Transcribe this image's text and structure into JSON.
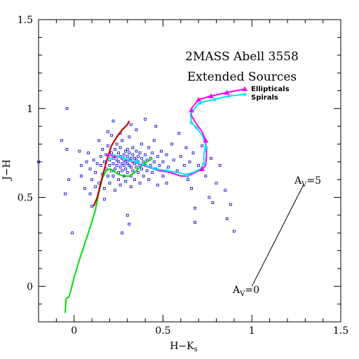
{
  "chart_data": {
    "type": "scatter",
    "title_lines": [
      "2MASS Abell 3558",
      "Extended Sources"
    ],
    "xlabel": "H−K",
    "xlabel_sub": "s",
    "ylabel": "J−H",
    "xlim": [
      -0.2,
      1.5
    ],
    "ylim": [
      -0.2,
      1.5
    ],
    "x_ticks": [
      0,
      0.5,
      1,
      1.5
    ],
    "x_tick_labels": [
      "0",
      "0.5",
      "1",
      "1.5"
    ],
    "y_ticks": [
      0,
      0.5,
      1,
      1.5
    ],
    "y_tick_labels": [
      "0",
      "0.5",
      "1",
      "1.5"
    ],
    "grid": false,
    "colors": {
      "points": "#0000cc",
      "dwarfs": "#00dd00",
      "giants": "#cc0000",
      "ellipticals": "#ff00ff",
      "spirals": "#00e5ee",
      "axes": "#000000"
    },
    "scatter_points": [
      [
        -0.2,
        0.7
      ],
      [
        -0.07,
        0.82
      ],
      [
        -0.04,
        1.0
      ],
      [
        -0.04,
        0.77
      ],
      [
        -0.05,
        0.52
      ],
      [
        -0.03,
        0.6
      ],
      [
        -0.01,
        0.3
      ],
      [
        0.03,
        0.76
      ],
      [
        0.04,
        0.68
      ],
      [
        0.04,
        0.62
      ],
      [
        0.06,
        0.55
      ],
      [
        0.07,
        0.7
      ],
      [
        0.08,
        0.75
      ],
      [
        0.09,
        0.66
      ],
      [
        0.1,
        0.6
      ],
      [
        0.11,
        0.71
      ],
      [
        0.1,
        0.45
      ],
      [
        0.12,
        0.64
      ],
      [
        0.13,
        0.69
      ],
      [
        0.14,
        0.58
      ],
      [
        0.15,
        0.73
      ],
      [
        0.15,
        0.68
      ],
      [
        0.16,
        0.77
      ],
      [
        0.16,
        0.63
      ],
      [
        0.17,
        0.7
      ],
      [
        0.17,
        0.55
      ],
      [
        0.18,
        0.74
      ],
      [
        0.18,
        0.66
      ],
      [
        0.19,
        0.79
      ],
      [
        0.19,
        0.62
      ],
      [
        0.2,
        0.71
      ],
      [
        0.2,
        0.68
      ],
      [
        0.2,
        0.58
      ],
      [
        0.21,
        0.75
      ],
      [
        0.21,
        0.65
      ],
      [
        0.21,
        0.85
      ],
      [
        0.22,
        0.72
      ],
      [
        0.22,
        0.69
      ],
      [
        0.22,
        0.62
      ],
      [
        0.23,
        0.77
      ],
      [
        0.23,
        0.73
      ],
      [
        0.23,
        0.66
      ],
      [
        0.23,
        0.54
      ],
      [
        0.24,
        0.71
      ],
      [
        0.24,
        0.68
      ],
      [
        0.24,
        0.8
      ],
      [
        0.25,
        0.75
      ],
      [
        0.25,
        0.7
      ],
      [
        0.25,
        0.64
      ],
      [
        0.25,
        0.6
      ],
      [
        0.26,
        0.73
      ],
      [
        0.26,
        0.67
      ],
      [
        0.26,
        0.78
      ],
      [
        0.26,
        0.57
      ],
      [
        0.27,
        0.72
      ],
      [
        0.27,
        0.69
      ],
      [
        0.27,
        0.65
      ],
      [
        0.27,
        0.82
      ],
      [
        0.28,
        0.74
      ],
      [
        0.28,
        0.71
      ],
      [
        0.28,
        0.68
      ],
      [
        0.28,
        0.62
      ],
      [
        0.29,
        0.76
      ],
      [
        0.29,
        0.7
      ],
      [
        0.29,
        0.66
      ],
      [
        0.29,
        0.59
      ],
      [
        0.3,
        0.73
      ],
      [
        0.3,
        0.69
      ],
      [
        0.3,
        0.77
      ],
      [
        0.3,
        0.64
      ],
      [
        0.31,
        0.71
      ],
      [
        0.31,
        0.68
      ],
      [
        0.31,
        0.75
      ],
      [
        0.31,
        0.84
      ],
      [
        0.32,
        0.72
      ],
      [
        0.32,
        0.67
      ],
      [
        0.32,
        0.62
      ],
      [
        0.32,
        0.56
      ],
      [
        0.33,
        0.74
      ],
      [
        0.33,
        0.7
      ],
      [
        0.33,
        0.78
      ],
      [
        0.33,
        0.65
      ],
      [
        0.34,
        0.72
      ],
      [
        0.34,
        0.69
      ],
      [
        0.34,
        0.6
      ],
      [
        0.35,
        0.76
      ],
      [
        0.35,
        0.71
      ],
      [
        0.35,
        0.67
      ],
      [
        0.35,
        0.88
      ],
      [
        0.36,
        0.73
      ],
      [
        0.36,
        0.7
      ],
      [
        0.36,
        0.64
      ],
      [
        0.37,
        0.75
      ],
      [
        0.37,
        0.68
      ],
      [
        0.37,
        0.58
      ],
      [
        0.38,
        0.72
      ],
      [
        0.38,
        0.66
      ],
      [
        0.38,
        0.8
      ],
      [
        0.39,
        0.7
      ],
      [
        0.39,
        0.62
      ],
      [
        0.4,
        0.74
      ],
      [
        0.4,
        0.68
      ],
      [
        0.4,
        0.94
      ],
      [
        0.41,
        0.71
      ],
      [
        0.41,
        0.65
      ],
      [
        0.42,
        0.78
      ],
      [
        0.42,
        0.6
      ],
      [
        0.43,
        0.72
      ],
      [
        0.43,
        0.68
      ],
      [
        0.44,
        0.75
      ],
      [
        0.44,
        0.64
      ],
      [
        0.45,
        0.7
      ],
      [
        0.45,
        0.82
      ],
      [
        0.46,
        0.66
      ],
      [
        0.47,
        0.73
      ],
      [
        0.47,
        0.57
      ],
      [
        0.48,
        0.68
      ],
      [
        0.49,
        0.76
      ],
      [
        0.5,
        0.7
      ],
      [
        0.5,
        0.62
      ],
      [
        0.52,
        0.74
      ],
      [
        0.53,
        0.67
      ],
      [
        0.55,
        0.8
      ],
      [
        0.56,
        0.71
      ],
      [
        0.58,
        0.65
      ],
      [
        0.59,
        0.86
      ],
      [
        0.6,
        0.73
      ],
      [
        0.62,
        0.68
      ],
      [
        0.63,
        0.78
      ],
      [
        0.64,
        0.6
      ],
      [
        0.65,
        0.7
      ],
      [
        0.66,
        0.55
      ],
      [
        0.67,
        0.75
      ],
      [
        0.68,
        0.36
      ],
      [
        0.68,
        0.44
      ],
      [
        0.7,
        0.68
      ],
      [
        0.72,
        0.79
      ],
      [
        0.74,
        0.62
      ],
      [
        0.76,
        0.5
      ],
      [
        0.77,
        0.72
      ],
      [
        0.78,
        0.47
      ],
      [
        0.8,
        0.58
      ],
      [
        0.82,
        0.68
      ],
      [
        0.85,
        0.54
      ],
      [
        0.86,
        0.38
      ],
      [
        0.88,
        0.46
      ],
      [
        0.9,
        0.31
      ],
      [
        0.3,
        0.4
      ],
      [
        0.31,
        0.35
      ],
      [
        0.27,
        0.3
      ],
      [
        0.19,
        0.87
      ],
      [
        0.22,
        0.93
      ],
      [
        0.26,
        0.86
      ],
      [
        0.32,
        0.91
      ],
      [
        0.14,
        0.82
      ],
      [
        0.12,
        0.56
      ],
      [
        0.09,
        0.52
      ],
      [
        0.17,
        0.49
      ],
      [
        0.46,
        0.9
      ],
      [
        0.52,
        0.58
      ]
    ],
    "lines": {
      "dwarfs": [
        [
          -0.05,
          -0.15
        ],
        [
          -0.045,
          -0.07
        ],
        [
          -0.03,
          -0.06
        ],
        [
          -0.02,
          -0.03
        ],
        [
          0.0,
          0.05
        ],
        [
          0.03,
          0.15
        ],
        [
          0.06,
          0.24
        ],
        [
          0.09,
          0.33
        ],
        [
          0.12,
          0.43
        ],
        [
          0.14,
          0.53
        ],
        [
          0.16,
          0.61
        ],
        [
          0.18,
          0.65
        ],
        [
          0.2,
          0.66
        ],
        [
          0.22,
          0.65
        ],
        [
          0.25,
          0.63
        ],
        [
          0.28,
          0.62
        ],
        [
          0.31,
          0.62
        ],
        [
          0.34,
          0.64
        ],
        [
          0.37,
          0.67
        ],
        [
          0.41,
          0.7
        ],
        [
          0.44,
          0.72
        ]
      ],
      "giants": [
        [
          0.11,
          0.45
        ],
        [
          0.13,
          0.5
        ],
        [
          0.15,
          0.58
        ],
        [
          0.17,
          0.66
        ],
        [
          0.19,
          0.73
        ],
        [
          0.21,
          0.79
        ],
        [
          0.24,
          0.84
        ],
        [
          0.27,
          0.88
        ],
        [
          0.3,
          0.91
        ],
        [
          0.31,
          0.93
        ]
      ],
      "ellipticals": [
        [
          0.18,
          0.74
        ],
        [
          0.24,
          0.73
        ],
        [
          0.3,
          0.71
        ],
        [
          0.36,
          0.69
        ],
        [
          0.42,
          0.67
        ],
        [
          0.48,
          0.65
        ],
        [
          0.54,
          0.64
        ],
        [
          0.6,
          0.62
        ],
        [
          0.64,
          0.62
        ],
        [
          0.68,
          0.64
        ],
        [
          0.72,
          0.66
        ],
        [
          0.74,
          0.68
        ],
        [
          0.745,
          0.74
        ],
        [
          0.74,
          0.82
        ],
        [
          0.72,
          0.87
        ],
        [
          0.69,
          0.91
        ],
        [
          0.66,
          0.96
        ],
        [
          0.66,
          1.0
        ],
        [
          0.7,
          1.05
        ],
        [
          0.77,
          1.07
        ],
        [
          0.86,
          1.09
        ],
        [
          0.96,
          1.11
        ]
      ],
      "spirals": [
        [
          0.22,
          0.74
        ],
        [
          0.28,
          0.72
        ],
        [
          0.34,
          0.7
        ],
        [
          0.4,
          0.68
        ],
        [
          0.46,
          0.66
        ],
        [
          0.52,
          0.65
        ],
        [
          0.58,
          0.64
        ],
        [
          0.63,
          0.63
        ],
        [
          0.67,
          0.64
        ],
        [
          0.71,
          0.66
        ],
        [
          0.73,
          0.69
        ],
        [
          0.73,
          0.74
        ],
        [
          0.74,
          0.8
        ],
        [
          0.72,
          0.85
        ],
        [
          0.69,
          0.89
        ],
        [
          0.66,
          0.92
        ],
        [
          0.655,
          0.97
        ],
        [
          0.7,
          1.03
        ],
        [
          0.78,
          1.05
        ],
        [
          0.87,
          1.07
        ],
        [
          0.96,
          1.08
        ]
      ]
    },
    "ellipticals_markers": [
      [
        0.66,
        0.99
      ],
      [
        0.7,
        1.05
      ],
      [
        0.77,
        1.07
      ],
      [
        0.86,
        1.09
      ],
      [
        0.96,
        1.11
      ],
      [
        0.74,
        0.82
      ],
      [
        0.72,
        0.66
      ]
    ],
    "spirals_markers": [
      [
        0.2,
        0.72
      ],
      [
        0.28,
        0.72
      ],
      [
        0.36,
        0.7
      ],
      [
        0.45,
        0.66
      ],
      [
        0.52,
        0.65
      ],
      [
        0.64,
        0.62
      ],
      [
        0.73,
        0.69
      ],
      [
        0.745,
        0.78
      ],
      [
        0.69,
        0.89
      ],
      [
        0.66,
        0.92
      ],
      [
        0.71,
        1.03
      ],
      [
        0.79,
        1.05
      ],
      [
        0.87,
        1.07
      ],
      [
        0.96,
        1.08
      ]
    ],
    "labels": {
      "ellipticals": "Ellipticals",
      "spirals": "Spirals",
      "av5": "A",
      "av5_sub": "V",
      "av5_val": "=5",
      "av0": "A",
      "av0_sub": "V",
      "av0_val": "=0"
    },
    "reddening_vector": {
      "from": [
        1.0,
        0.0
      ],
      "to": [
        1.29,
        0.57
      ]
    }
  }
}
